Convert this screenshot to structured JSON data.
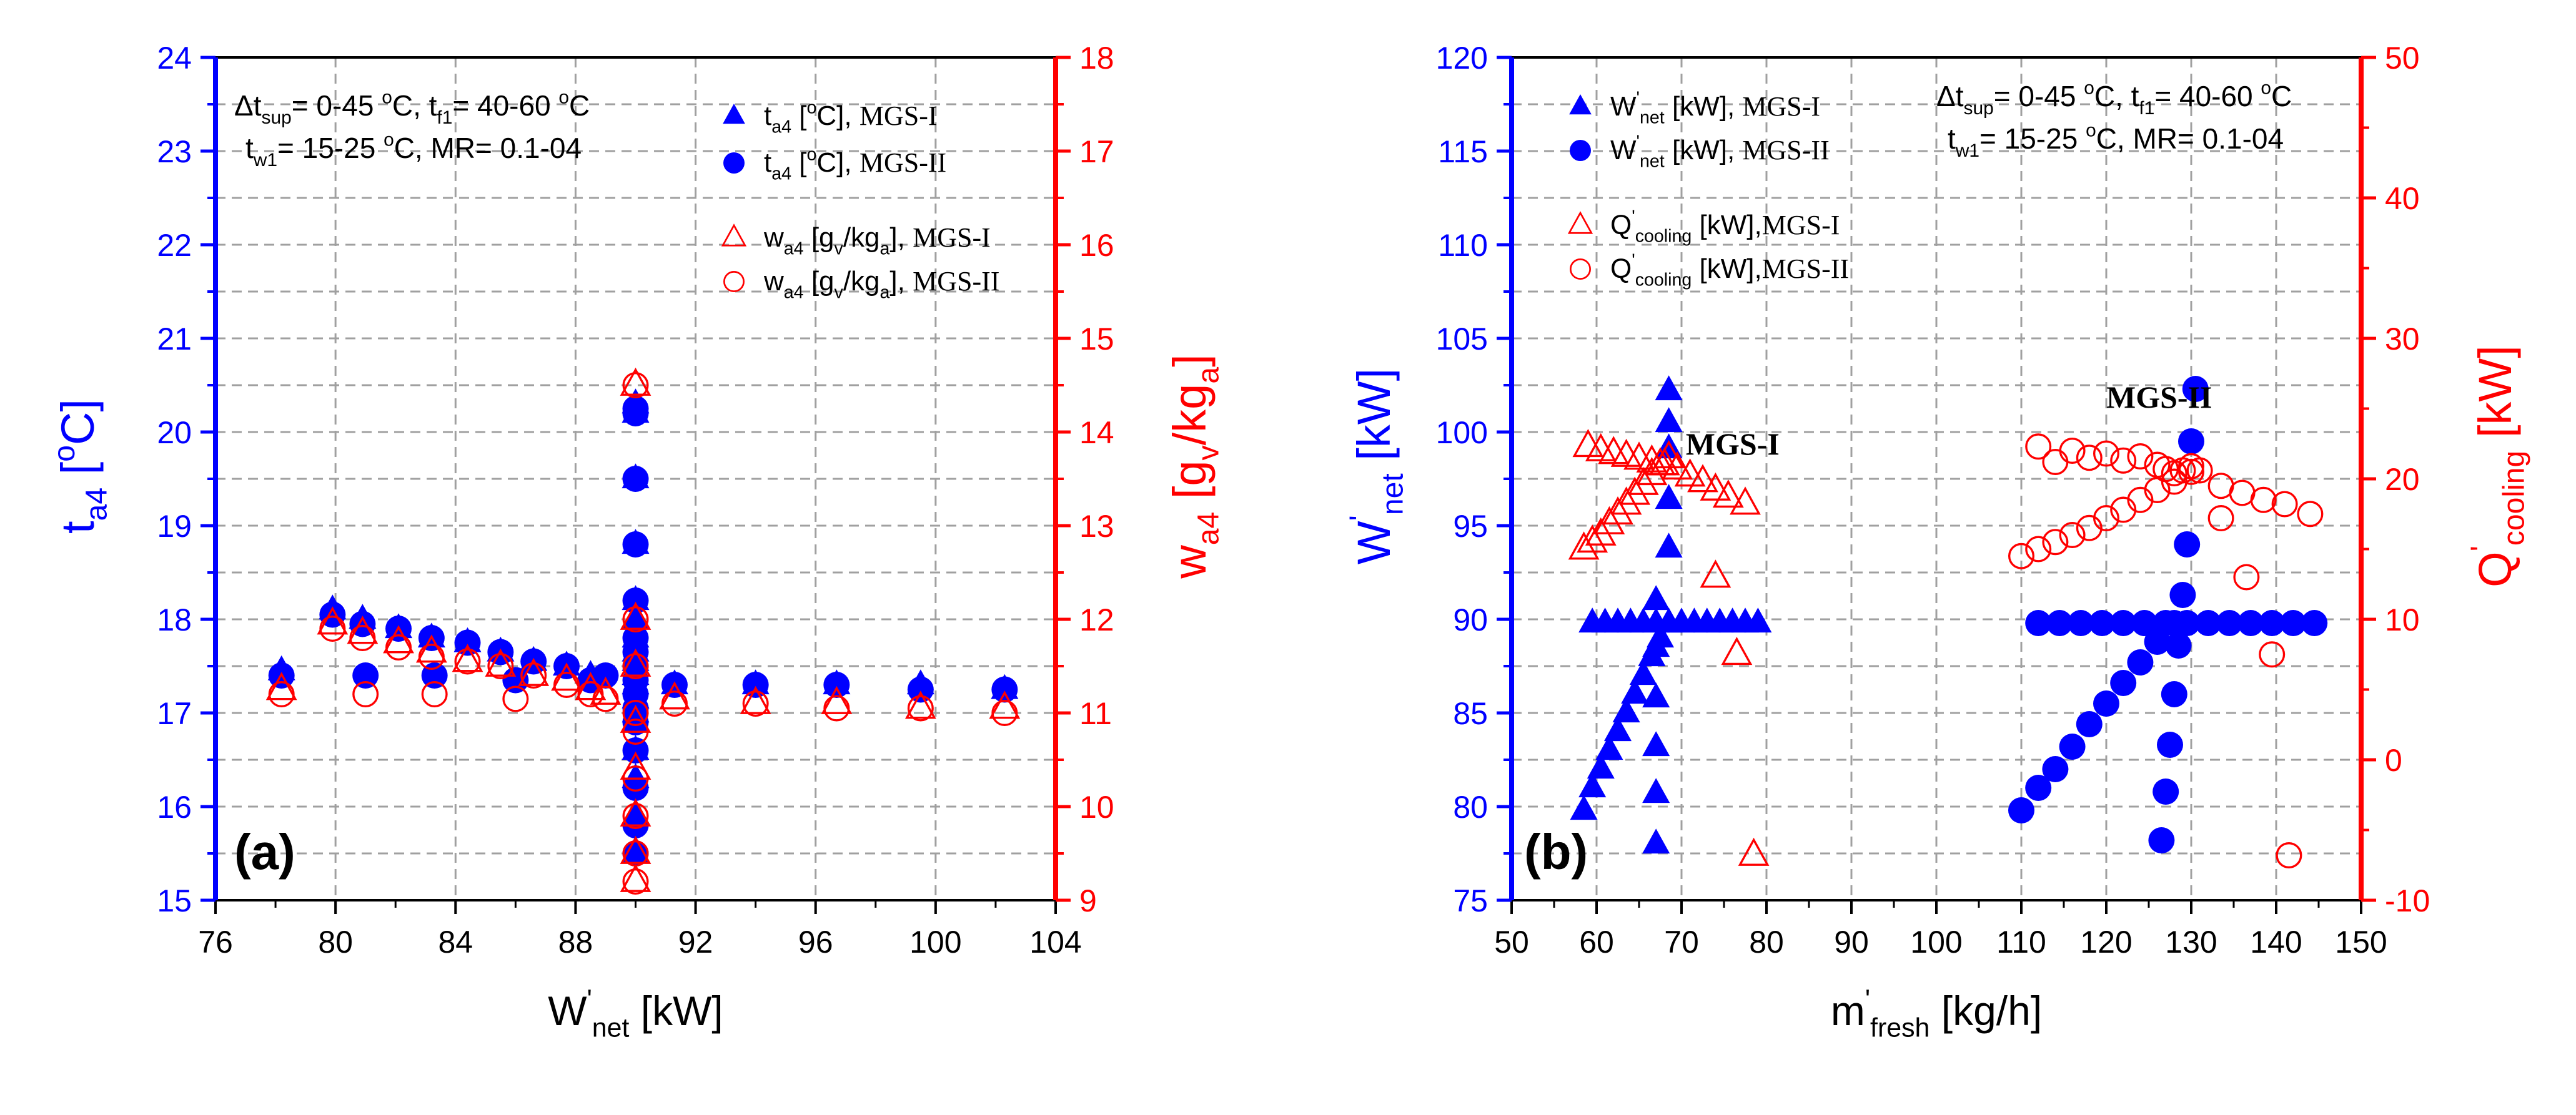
{
  "colors": {
    "left_axis": "#0000ff",
    "right_axis": "#ff0000",
    "grid": "#a0a0a0",
    "frame": "#000000"
  },
  "chart_data": [
    {
      "id": "a",
      "type": "scatter",
      "panel_label": "(a)",
      "xlabel_main": "W",
      "xlabel_sup": "'",
      "xlabel_sub": "net",
      "xlabel_unit": " [kW]",
      "xlim": [
        76,
        104
      ],
      "xticks": [
        76,
        80,
        84,
        88,
        92,
        96,
        100,
        104
      ],
      "ylabel_left_main": "t",
      "ylabel_left_sub": "a4",
      "ylabel_left_unit": " [",
      "ylabel_left_unit_sup": "o",
      "ylabel_left_unit_end": "C]",
      "ylim_left": [
        15,
        24
      ],
      "yticks_left": [
        15,
        16,
        17,
        18,
        19,
        20,
        21,
        22,
        23,
        24
      ],
      "ylabel_right_main": "w",
      "ylabel_right_sub": "a4",
      "ylabel_right_unit": " [g",
      "ylabel_right_unit_sub1": "v",
      "ylabel_right_unit_mid": "/kg",
      "ylabel_right_unit_sub2": "a",
      "ylabel_right_unit_end": "]",
      "ylim_right": [
        9,
        18
      ],
      "yticks_right": [
        9,
        10,
        11,
        12,
        13,
        14,
        15,
        16,
        17,
        18
      ],
      "conditions": {
        "line1_a": "Δt",
        "line1_a_sub": "sup",
        "line1_b": "= 0-45 ",
        "line1_b_sup": "o",
        "line1_c": "C, t",
        "line1_c_sub": "f1",
        "line1_d": "= 40-60 ",
        "line1_d_sup": "o",
        "line1_e": "C",
        "line2_a": "t",
        "line2_a_sub": "w1",
        "line2_b": "= 15-25 ",
        "line2_b_sup": "o",
        "line2_c": "C, MR= 0.1-04"
      },
      "legend": [
        {
          "marker": "triangle-filled",
          "axis": "left",
          "text_main": "t",
          "text_sub": "a4",
          "text_unit": " [",
          "text_unit_sup": "o",
          "text_unit_end": "C], ",
          "text_serif": "MGS-I"
        },
        {
          "marker": "circle-filled",
          "axis": "left",
          "text_main": "t",
          "text_sub": "a4",
          "text_unit": " [",
          "text_unit_sup": "o",
          "text_unit_end": "C], ",
          "text_serif": "MGS-II"
        },
        {
          "marker": "triangle-open",
          "axis": "right",
          "text_main": "w",
          "text_sub": "a4",
          "text_unit": " [g",
          "text_unit_sub1": "v",
          "text_unit_mid": "/kg",
          "text_unit_sub2": "a",
          "text_unit_end": "], ",
          "text_serif": "MGS-I"
        },
        {
          "marker": "circle-open",
          "axis": "right",
          "text_main": "w",
          "text_sub": "a4",
          "text_unit": " [g",
          "text_unit_sub1": "v",
          "text_unit_mid": "/kg",
          "text_unit_sub2": "a",
          "text_unit_end": "], ",
          "text_serif": "MGS-II"
        }
      ],
      "series": [
        {
          "name": "t_a4 MGS-I",
          "axis": "left",
          "marker": "triangle-filled",
          "x": [
            78.2,
            79.9,
            80.9,
            82.1,
            83.2,
            84.4,
            85.5,
            86.6,
            87.7,
            88.5,
            90,
            90,
            90,
            90,
            90,
            90,
            90,
            90,
            90,
            90,
            90,
            90,
            90,
            90,
            90,
            90,
            90,
            90,
            91.3,
            94,
            96.7,
            99.5,
            102.3
          ],
          "y": [
            17.45,
            18.1,
            18.0,
            17.9,
            17.8,
            17.75,
            17.65,
            17.55,
            17.5,
            17.4,
            15.5,
            15.9,
            16.3,
            16.6,
            16.9,
            17.0,
            17.15,
            17.3,
            17.4,
            17.55,
            17.65,
            17.8,
            18.0,
            18.2,
            18.8,
            19.5,
            20.2,
            20.3,
            17.3,
            17.3,
            17.3,
            17.3,
            17.25
          ]
        },
        {
          "name": "t_a4 MGS-II",
          "axis": "left",
          "marker": "circle-filled",
          "x": [
            78.2,
            79.9,
            80.9,
            81.0,
            82.1,
            83.2,
            83.3,
            84.4,
            85.5,
            86.0,
            86.6,
            87.7,
            88.5,
            89.0,
            90,
            90,
            90,
            90,
            90,
            90,
            90,
            90,
            90,
            90,
            90,
            90,
            90,
            90,
            90,
            90,
            91.3,
            94,
            96.7,
            99.5,
            102.3
          ],
          "y": [
            17.4,
            18.05,
            17.95,
            17.4,
            17.9,
            17.8,
            17.4,
            17.75,
            17.65,
            17.35,
            17.55,
            17.5,
            17.35,
            17.4,
            15.5,
            15.8,
            16.2,
            16.6,
            16.9,
            17.05,
            17.2,
            17.35,
            17.5,
            17.65,
            17.8,
            18.2,
            18.8,
            19.5,
            20.2,
            20.25,
            17.3,
            17.3,
            17.3,
            17.25,
            17.25
          ]
        },
        {
          "name": "w_a4 MGS-I",
          "axis": "right",
          "marker": "triangle-open",
          "x": [
            78.2,
            79.9,
            80.9,
            82.1,
            83.2,
            84.4,
            85.5,
            86.6,
            87.7,
            88.5,
            89.0,
            90,
            90,
            90,
            90,
            90,
            90,
            90,
            90,
            91.3,
            94,
            96.7,
            99.5,
            102.3
          ],
          "y": [
            11.25,
            11.95,
            11.85,
            11.75,
            11.65,
            11.55,
            11.5,
            11.4,
            11.35,
            11.25,
            11.2,
            9.2,
            9.5,
            9.9,
            10.4,
            10.9,
            11.5,
            12.0,
            14.5,
            11.15,
            11.1,
            11.1,
            11.05,
            11.05
          ]
        },
        {
          "name": "w_a4 MGS-II",
          "axis": "right",
          "marker": "circle-open",
          "x": [
            78.2,
            79.9,
            80.9,
            81.0,
            82.1,
            83.2,
            83.3,
            84.4,
            85.5,
            86.0,
            86.6,
            87.7,
            88.5,
            89.0,
            90,
            90,
            90,
            90,
            90,
            90,
            90,
            90,
            90,
            91.3,
            94,
            96.7,
            99.5,
            102.3
          ],
          "y": [
            11.2,
            11.9,
            11.8,
            11.2,
            11.7,
            11.6,
            11.2,
            11.55,
            11.5,
            11.15,
            11.4,
            11.3,
            11.2,
            11.15,
            9.2,
            9.5,
            9.9,
            10.3,
            10.8,
            11.0,
            11.5,
            12.0,
            14.5,
            11.1,
            11.1,
            11.05,
            11.05,
            11.0
          ]
        }
      ]
    },
    {
      "id": "b",
      "type": "scatter",
      "panel_label": "(b)",
      "xlabel_main": "m",
      "xlabel_sup": "'",
      "xlabel_sub": "fresh",
      "xlabel_unit": " [kg/h]",
      "xlim": [
        50,
        150
      ],
      "xticks": [
        50,
        60,
        70,
        80,
        90,
        100,
        110,
        120,
        130,
        140,
        150
      ],
      "ylabel_left_main": "W",
      "ylabel_left_sup": "'",
      "ylabel_left_sub": "net",
      "ylabel_left_unit": " [kW]",
      "ylim_left": [
        75,
        120
      ],
      "yticks_left": [
        75,
        80,
        85,
        90,
        95,
        100,
        105,
        110,
        115,
        120
      ],
      "ylabel_right_main": "Q",
      "ylabel_right_sup": "'",
      "ylabel_right_sub": "cooling",
      "ylabel_right_unit": " [kW]",
      "ylim_right": [
        -10,
        50
      ],
      "yticks_right": [
        -10,
        0,
        10,
        20,
        30,
        40,
        50
      ],
      "conditions": {
        "line1_a": "Δt",
        "line1_a_sub": "sup",
        "line1_b": "= 0-45 ",
        "line1_b_sup": "o",
        "line1_c": "C, t",
        "line1_c_sub": "f1",
        "line1_d": "= 40-60 ",
        "line1_d_sup": "o",
        "line1_e": "C",
        "line2_a": "t",
        "line2_a_sub": "w1",
        "line2_b": "= 15-25 ",
        "line2_b_sup": "o",
        "line2_c": "C, MR= 0.1-04"
      },
      "annotations": [
        {
          "text": "MGS-I",
          "x": 70.5,
          "axis": "left",
          "y": 98.8
        },
        {
          "text": "MGS-II",
          "x": 120,
          "axis": "left",
          "y": 101.3
        }
      ],
      "legend": [
        {
          "marker": "triangle-filled",
          "axis": "left",
          "text_main": "W",
          "text_sup": "'",
          "text_sub": "net",
          "text_unit": " [kW], ",
          "text_serif": "MGS-I"
        },
        {
          "marker": "circle-filled",
          "axis": "left",
          "text_main": "W",
          "text_sup": "'",
          "text_sub": "net",
          "text_unit": " [kW], ",
          "text_serif": "MGS-II"
        },
        {
          "marker": "triangle-open",
          "axis": "right",
          "text_main": "Q",
          "text_sup": "'",
          "text_sub": "cooling",
          "text_unit": " [kW],",
          "text_serif": "MGS-I"
        },
        {
          "marker": "circle-open",
          "axis": "right",
          "text_main": "Q",
          "text_sup": "'",
          "text_sub": "cooling",
          "text_unit": " [kW],",
          "text_serif": "MGS-II"
        }
      ],
      "series": [
        {
          "name": "W_net MGS-I",
          "axis": "left",
          "marker": "triangle-filled",
          "x": [
            58.5,
            59.5,
            60.5,
            61.5,
            62.5,
            63.5,
            64.5,
            65.5,
            66.5,
            67.5,
            68.5,
            59.5,
            61,
            62.5,
            64,
            65.5,
            67,
            68.5,
            70,
            71.5,
            73,
            74.5,
            76,
            77.5,
            79,
            67,
            67,
            67,
            67,
            67,
            67,
            68.5,
            68.5,
            68.5,
            68.5,
            68.5
          ],
          "y": [
            79.8,
            81,
            82,
            83,
            84,
            85,
            86,
            87,
            88,
            89,
            89.8,
            89.8,
            89.8,
            89.8,
            89.8,
            89.8,
            89.8,
            89.8,
            89.8,
            89.8,
            89.8,
            89.8,
            89.8,
            89.8,
            89.8,
            78,
            80.7,
            83.2,
            85.8,
            88.5,
            91,
            93.8,
            96.4,
            99.1,
            100.5,
            102.2
          ]
        },
        {
          "name": "W_net MGS-II",
          "axis": "left",
          "marker": "circle-filled",
          "x": [
            110,
            112,
            114,
            116,
            118,
            120,
            122,
            124,
            126,
            128,
            112,
            114.5,
            117,
            119.5,
            122,
            124.5,
            127,
            129.5,
            132,
            134.5,
            137,
            139.5,
            142,
            144.5,
            126.5,
            127,
            127.5,
            128,
            128.5,
            129,
            129.5,
            130,
            130.5
          ],
          "y": [
            79.8,
            81,
            82,
            83.2,
            84.4,
            85.5,
            86.6,
            87.7,
            88.8,
            89.8,
            89.8,
            89.8,
            89.8,
            89.8,
            89.8,
            89.8,
            89.8,
            89.8,
            89.8,
            89.8,
            89.8,
            89.8,
            89.8,
            89.8,
            78.2,
            80.8,
            83.3,
            86,
            88.6,
            91.3,
            94,
            99.5,
            102.3
          ]
        },
        {
          "name": "Q_cooling MGS-I",
          "axis": "right",
          "marker": "triangle-open",
          "x": [
            58.5,
            59.5,
            60.5,
            61.5,
            62.5,
            63.5,
            64.5,
            65.5,
            66.5,
            67.5,
            68.5,
            59,
            60.5,
            62,
            63.5,
            65,
            66.5,
            68,
            69.5,
            71,
            72.5,
            74,
            75.5,
            77.5,
            74,
            76.5,
            78.5
          ],
          "y": [
            15,
            15.5,
            16,
            16.8,
            17.5,
            18.2,
            18.9,
            19.6,
            20.3,
            21,
            21.5,
            22.3,
            22,
            21.8,
            21.6,
            21.4,
            21.2,
            21,
            20.7,
            20.2,
            19.8,
            19.2,
            18.7,
            18.2,
            13,
            7.5,
            -6.8
          ]
        },
        {
          "name": "Q_cooling MGS-II",
          "axis": "right",
          "marker": "circle-open",
          "x": [
            110,
            112,
            114,
            116,
            118,
            120,
            122,
            124,
            126,
            128,
            130,
            112,
            114,
            116,
            118,
            120,
            122,
            124,
            126,
            127,
            128,
            129,
            130,
            131,
            133.5,
            136,
            138.5,
            141,
            144,
            133.5,
            136.5,
            139.5,
            141.5
          ],
          "y": [
            14.5,
            15,
            15.5,
            16,
            16.5,
            17.2,
            17.8,
            18.5,
            19.2,
            19.8,
            20.5,
            22.3,
            21.2,
            22.0,
            21.5,
            21.8,
            21.3,
            21.6,
            21,
            20.7,
            20.4,
            20.6,
            20.9,
            20.6,
            19.5,
            19,
            18.5,
            18.2,
            17.5,
            17.2,
            13,
            7.5,
            -6.8
          ]
        }
      ]
    }
  ]
}
